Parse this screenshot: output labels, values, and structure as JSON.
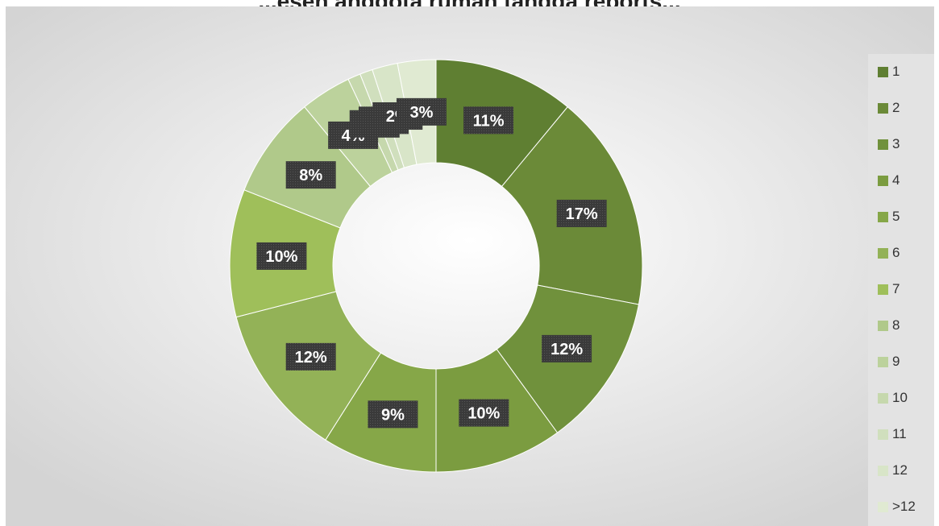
{
  "chart_data": {
    "type": "donut",
    "title": "...eseh anggota rumah tangga reports...",
    "categories": [
      "1",
      "2",
      "3",
      "4",
      "5",
      "6",
      "7",
      "8",
      "9",
      "10",
      "11",
      "12",
      ">12"
    ],
    "values": [
      11,
      17,
      12,
      10,
      9,
      12,
      10,
      8,
      4,
      1,
      1,
      2,
      3
    ],
    "labels": [
      "11%",
      "17%",
      "12%",
      "10%",
      "9%",
      "12%",
      "10%",
      "8%",
      "4%",
      "1%",
      "1%",
      "2%",
      "3%"
    ],
    "colors": [
      "#5f7f32",
      "#6b8a38",
      "#70913c",
      "#7b9c40",
      "#86a748",
      "#93b257",
      "#9fbf5a",
      "#b0c98a",
      "#bcd29c",
      "#c6d8ad",
      "#d0dfbd",
      "#d8e5c8",
      "#e0ead2"
    ],
    "legend": "right"
  }
}
